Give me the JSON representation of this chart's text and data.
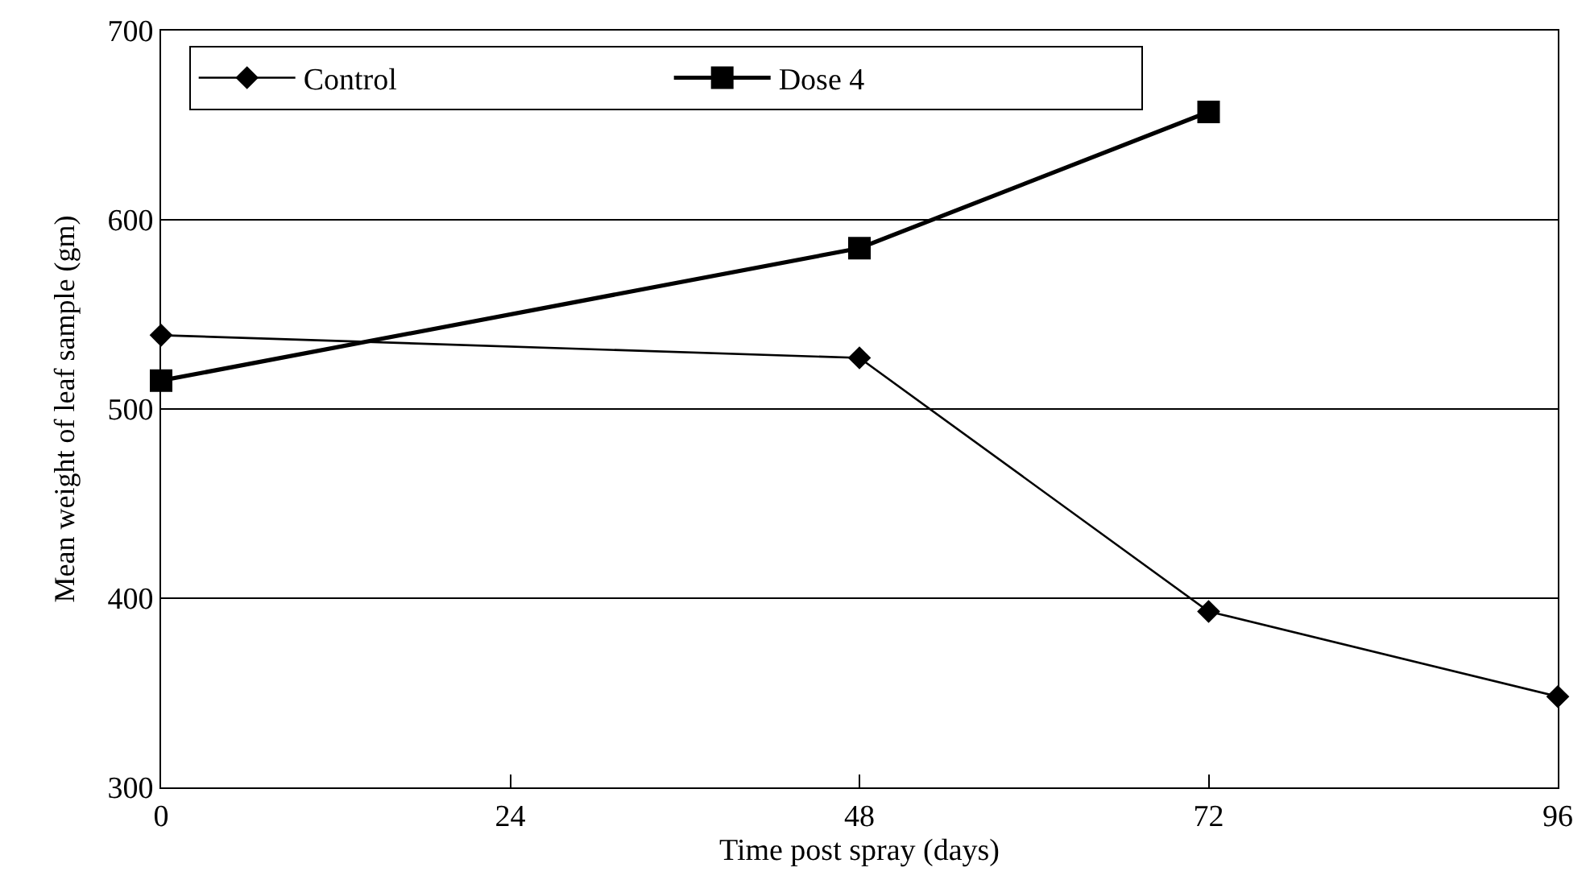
{
  "chart_data": {
    "type": "line",
    "xlabel": "Time post spray (days)",
    "ylabel": "Mean weight of leaf sample (gm)",
    "xlim": [
      0,
      96
    ],
    "xticks": [
      0,
      24,
      48,
      72,
      96
    ],
    "ylim": [
      300,
      700
    ],
    "yticks": [
      300,
      400,
      500,
      600,
      700
    ],
    "grid": "y",
    "legend": "top left",
    "series": [
      {
        "name": "Control",
        "color": "#000000",
        "marker": "diamond",
        "x": [
          0,
          48,
          72,
          96
        ],
        "values": [
          539,
          527,
          393,
          348
        ]
      },
      {
        "name": "Dose 4",
        "color": "#000000",
        "marker": "square",
        "x": [
          0,
          48,
          72
        ],
        "values": [
          515,
          585,
          657
        ]
      }
    ]
  }
}
